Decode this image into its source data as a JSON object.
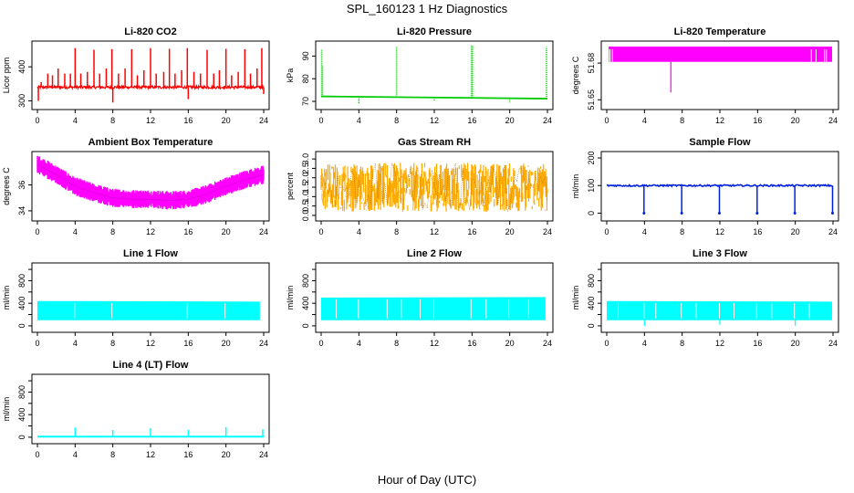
{
  "figure": {
    "title": "SPL_160123  1 Hz Diagnostics",
    "xlabel": "Hour of Day (UTC)"
  },
  "chart_data": [
    {
      "id": "co2",
      "type": "line",
      "title": "Li-820 CO2",
      "ylabel": "Licor ppm",
      "color": "#ff0000",
      "xlim": [
        0,
        24
      ],
      "ylim": [
        285,
        465
      ],
      "xticks": [
        0,
        4,
        8,
        12,
        16,
        20,
        24
      ],
      "yticks": [
        300,
        400
      ],
      "style": "noisy_spikes",
      "baseline": 340,
      "noise": 4,
      "spikes": [
        {
          "x": 0.1,
          "y": 300
        },
        {
          "x": 0.4,
          "y": 355
        },
        {
          "x": 1.1,
          "y": 380
        },
        {
          "x": 1.6,
          "y": 375
        },
        {
          "x": 2.2,
          "y": 395
        },
        {
          "x": 2.9,
          "y": 380
        },
        {
          "x": 3.5,
          "y": 380
        },
        {
          "x": 4.0,
          "y": 455
        },
        {
          "x": 4.6,
          "y": 380
        },
        {
          "x": 5.3,
          "y": 385
        },
        {
          "x": 6.0,
          "y": 450
        },
        {
          "x": 6.6,
          "y": 380
        },
        {
          "x": 7.3,
          "y": 395
        },
        {
          "x": 7.9,
          "y": 452
        },
        {
          "x": 8.0,
          "y": 295
        },
        {
          "x": 8.6,
          "y": 380
        },
        {
          "x": 9.3,
          "y": 395
        },
        {
          "x": 10.0,
          "y": 452
        },
        {
          "x": 10.6,
          "y": 375
        },
        {
          "x": 11.3,
          "y": 390
        },
        {
          "x": 12.0,
          "y": 455
        },
        {
          "x": 12.6,
          "y": 380
        },
        {
          "x": 13.4,
          "y": 385
        },
        {
          "x": 14.0,
          "y": 453
        },
        {
          "x": 14.6,
          "y": 380
        },
        {
          "x": 15.3,
          "y": 390
        },
        {
          "x": 15.9,
          "y": 455
        },
        {
          "x": 16.0,
          "y": 305
        },
        {
          "x": 16.6,
          "y": 385
        },
        {
          "x": 17.3,
          "y": 380
        },
        {
          "x": 18.0,
          "y": 450
        },
        {
          "x": 18.7,
          "y": 380
        },
        {
          "x": 19.3,
          "y": 390
        },
        {
          "x": 20.0,
          "y": 453
        },
        {
          "x": 20.6,
          "y": 375
        },
        {
          "x": 21.3,
          "y": 385
        },
        {
          "x": 22.0,
          "y": 452
        },
        {
          "x": 22.6,
          "y": 380
        },
        {
          "x": 23.3,
          "y": 395
        },
        {
          "x": 23.8,
          "y": 455
        },
        {
          "x": 24.0,
          "y": 320
        }
      ]
    },
    {
      "id": "pressure",
      "type": "line",
      "title": "Li-820 Pressure",
      "ylabel": "kPa",
      "color": "#00cc00",
      "xlim": [
        0,
        24
      ],
      "ylim": [
        68,
        95
      ],
      "xticks": [
        0,
        4,
        8,
        12,
        16,
        20,
        24
      ],
      "yticks": [
        70,
        80,
        90
      ],
      "style": "sparse_spikes",
      "baseline_start": 72.2,
      "baseline_end": 71.2,
      "spikes": [
        {
          "x": 0.05,
          "y": 93
        },
        {
          "x": 0.15,
          "y": 86
        },
        {
          "x": 4.0,
          "y": 69
        },
        {
          "x": 8.0,
          "y": 94
        },
        {
          "x": 12.0,
          "y": 70
        },
        {
          "x": 15.95,
          "y": 94.5
        },
        {
          "x": 16.05,
          "y": 94.5
        },
        {
          "x": 20.0,
          "y": 69.5
        },
        {
          "x": 23.9,
          "y": 94
        }
      ]
    },
    {
      "id": "li820temp",
      "type": "area",
      "title": "Li-820 Temperature",
      "ylabel": "degrees C",
      "color": "#ff00ff",
      "xlim": [
        0,
        24
      ],
      "ylim": [
        51.645,
        51.695
      ],
      "xticks": [
        0,
        4,
        8,
        12,
        16,
        20,
        24
      ],
      "yticks": [
        51.65,
        51.68
      ],
      "style": "band_steps",
      "band_low": 51.681,
      "band_high": 51.6935,
      "gaps": [
        0.3,
        0.35,
        0.6,
        21.7,
        22.2,
        23.1,
        23.3
      ],
      "dips": [
        {
          "x": 6.8,
          "y": 51.656
        }
      ]
    },
    {
      "id": "ambient",
      "type": "area",
      "title": "Ambient Box Temperature",
      "ylabel": "degrees C",
      "color": "#ff00ff",
      "xlim": [
        0,
        24
      ],
      "ylim": [
        33.5,
        38.3
      ],
      "xticks": [
        0,
        4,
        8,
        12,
        16,
        20,
        24
      ],
      "yticks": [
        34,
        36
      ],
      "style": "curve_band",
      "curve": [
        {
          "x": 0,
          "y": 37.6
        },
        {
          "x": 2,
          "y": 36.8
        },
        {
          "x": 4,
          "y": 35.9
        },
        {
          "x": 6,
          "y": 35.4
        },
        {
          "x": 8,
          "y": 35.0
        },
        {
          "x": 10,
          "y": 34.9
        },
        {
          "x": 12,
          "y": 34.9
        },
        {
          "x": 14,
          "y": 34.8
        },
        {
          "x": 16,
          "y": 34.9
        },
        {
          "x": 18,
          "y": 35.3
        },
        {
          "x": 20,
          "y": 35.9
        },
        {
          "x": 22,
          "y": 36.4
        },
        {
          "x": 24,
          "y": 36.8
        }
      ],
      "band_half_width": 0.6
    },
    {
      "id": "rh",
      "type": "scatter",
      "title": "Gas Stream RH",
      "ylabel": "percent",
      "color": "#ffaa00",
      "accent": "#996600",
      "xlim": [
        0,
        24
      ],
      "ylim": [
        -0.1,
        3.2
      ],
      "xticks": [
        0,
        4,
        8,
        12,
        16,
        20,
        24
      ],
      "yticks": [
        0.0,
        0.5,
        1.0,
        1.5,
        2.0,
        2.5,
        3.0
      ],
      "ytick_labels": [
        "0.0",
        "0.5",
        "1.0",
        "1.5",
        "2.0",
        "2.5",
        "3.0"
      ],
      "style": "dense_noise",
      "center": 1.5,
      "spread": 1.3
    },
    {
      "id": "sample",
      "type": "line",
      "title": "Sample Flow",
      "ylabel": "ml/min",
      "color": "#0022dd",
      "xlim": [
        0,
        24
      ],
      "ylim": [
        -15,
        210
      ],
      "xticks": [
        0,
        4,
        8,
        12,
        16,
        20,
        24
      ],
      "yticks": [
        0,
        100,
        200
      ],
      "style": "dips",
      "baseline": 100,
      "spikes": [
        {
          "x": 3.95,
          "y": 0
        },
        {
          "x": 7.95,
          "y": 0
        },
        {
          "x": 11.95,
          "y": 0
        },
        {
          "x": 15.95,
          "y": 0
        },
        {
          "x": 19.95,
          "y": 0
        },
        {
          "x": 23.95,
          "y": 0
        }
      ]
    },
    {
      "id": "line1",
      "type": "area",
      "title": "Line 1 Flow",
      "ylabel": "ml/min",
      "color": "#00ffff",
      "xlim": [
        0,
        24
      ],
      "ylim": [
        -50,
        1050
      ],
      "xticks": [
        0,
        4,
        8,
        12,
        16,
        20,
        24
      ],
      "yticks": [
        0,
        200,
        400,
        600,
        800,
        1000
      ],
      "ytick_labels": [
        "0",
        "",
        "400",
        "",
        "800",
        ""
      ],
      "style": "block",
      "band_low": 100,
      "band_high_start": 440,
      "band_high_end": 430,
      "gaps": [
        3.95,
        7.9,
        15.9,
        19.9
      ],
      "end_x": 23.6
    },
    {
      "id": "line2",
      "type": "area",
      "title": "Line 2 Flow",
      "ylabel": "ml/min",
      "color": "#00ffff",
      "xlim": [
        0,
        24
      ],
      "ylim": [
        -50,
        1050
      ],
      "xticks": [
        0,
        4,
        8,
        12,
        16,
        20,
        24
      ],
      "yticks": [
        0,
        200,
        400,
        600,
        800,
        1000
      ],
      "ytick_labels": [
        "0",
        "",
        "400",
        "",
        "800",
        ""
      ],
      "style": "block",
      "band_low": 100,
      "band_high_start": 500,
      "band_high_end": 510,
      "gaps": [
        1.6,
        3.95,
        7.0,
        8.5,
        10.5,
        11.95,
        15.9,
        17.5,
        19.9,
        22.0
      ],
      "end_x": 23.8
    },
    {
      "id": "line3",
      "type": "area",
      "title": "Line 3 Flow",
      "ylabel": "ml/min",
      "color": "#00ffff",
      "xlim": [
        0,
        24
      ],
      "ylim": [
        -50,
        1050
      ],
      "xticks": [
        0,
        4,
        8,
        12,
        16,
        20,
        24
      ],
      "yticks": [
        0,
        200,
        400,
        600,
        800,
        1000
      ],
      "ytick_labels": [
        "0",
        "",
        "400",
        "",
        "800",
        ""
      ],
      "style": "block",
      "band_low": 100,
      "band_high_start": 440,
      "band_high_end": 430,
      "gaps": [
        1.2,
        3.95,
        5.2,
        7.9,
        9.5,
        11.95,
        13.5,
        15.9,
        17.5,
        19.9,
        21.5
      ],
      "end_x": 23.9,
      "dips": [
        {
          "x": 4.0,
          "y": 0
        },
        {
          "x": 12.0,
          "y": 20
        },
        {
          "x": 20.0,
          "y": 0
        }
      ]
    },
    {
      "id": "line4",
      "type": "line",
      "title": "Line 4 (LT) Flow",
      "ylabel": "ml/min",
      "color": "#00ffff",
      "xlim": [
        0,
        24
      ],
      "ylim": [
        -50,
        1050
      ],
      "xticks": [
        0,
        4,
        8,
        12,
        16,
        20,
        24
      ],
      "yticks": [
        0,
        200,
        400,
        600,
        800,
        1000
      ],
      "ytick_labels": [
        "0",
        "",
        "400",
        "",
        "800",
        ""
      ],
      "style": "flat_spikes",
      "baseline": 10,
      "spikes": [
        {
          "x": 4.0,
          "y": 170
        },
        {
          "x": 8.0,
          "y": 130
        },
        {
          "x": 12.0,
          "y": 160
        },
        {
          "x": 16.0,
          "y": 130
        },
        {
          "x": 20.0,
          "y": 180
        },
        {
          "x": 23.9,
          "y": 140
        }
      ]
    }
  ]
}
